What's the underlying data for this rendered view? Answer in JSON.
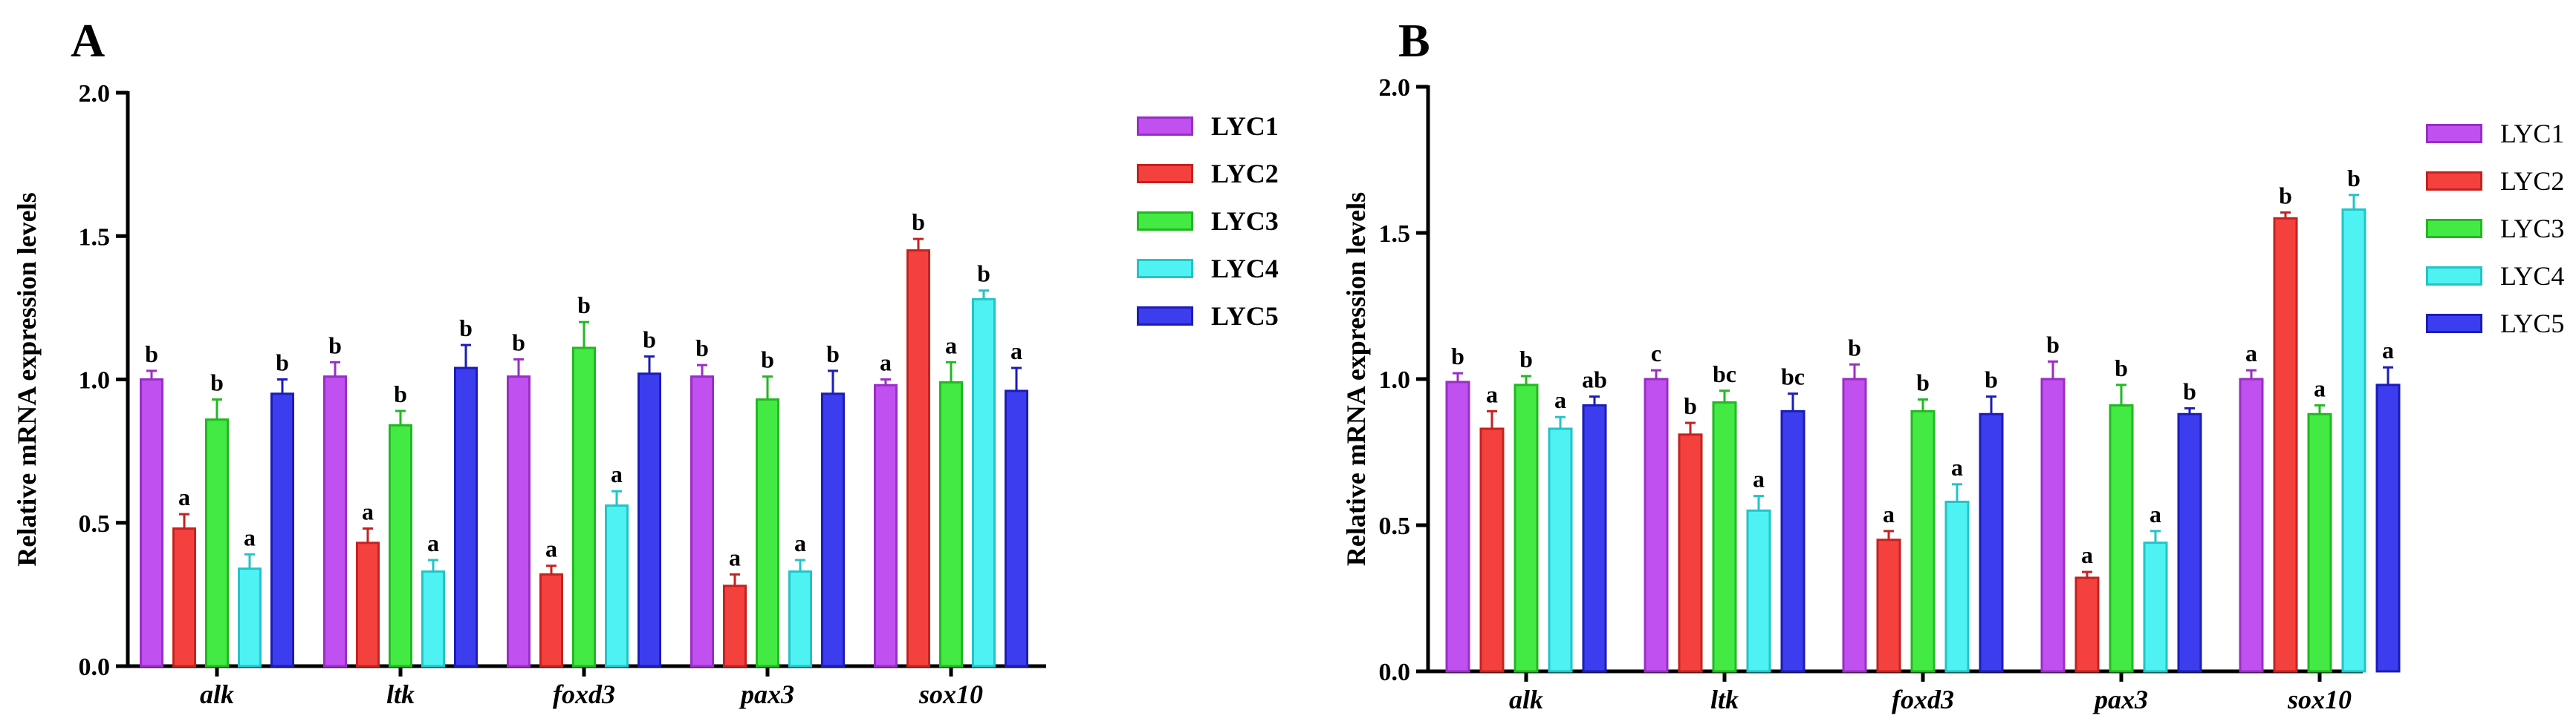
{
  "colors": {
    "LYC1": {
      "fill": "#c050f0",
      "stroke": "#9a2ec4"
    },
    "LYC2": {
      "fill": "#f5413e",
      "stroke": "#c42220"
    },
    "LYC3": {
      "fill": "#44ea44",
      "stroke": "#22b822"
    },
    "LYC4": {
      "fill": "#4ff2f2",
      "stroke": "#22c4c8"
    },
    "LYC5": {
      "fill": "#3d3df0",
      "stroke": "#1c1cb8"
    }
  },
  "panels": [
    {
      "letter": "A"
    },
    {
      "letter": "B"
    }
  ],
  "chart_data": [
    {
      "type": "bar",
      "panel": "A",
      "title": "",
      "xlabel": "",
      "ylabel": "Relative mRNA expression levels",
      "ylim": [
        0,
        2.0
      ],
      "yticks": [
        "0.0",
        "0.5",
        "1.0",
        "1.5",
        "2.0"
      ],
      "legend_position": "right",
      "categories": [
        "alk",
        "ltk",
        "foxd3",
        "pax3",
        "sox10"
      ],
      "series": [
        {
          "name": "LYC1",
          "values": [
            1.0,
            1.01,
            1.01,
            1.01,
            0.98
          ],
          "errors": [
            0.03,
            0.05,
            0.06,
            0.04,
            0.02
          ],
          "labels": [
            "b",
            "b",
            "b",
            "b",
            "a"
          ]
        },
        {
          "name": "LYC2",
          "values": [
            0.48,
            0.43,
            0.32,
            0.28,
            1.45
          ],
          "errors": [
            0.05,
            0.05,
            0.03,
            0.04,
            0.04
          ],
          "labels": [
            "a",
            "a",
            "a",
            "a",
            "b"
          ]
        },
        {
          "name": "LYC3",
          "values": [
            0.86,
            0.84,
            1.11,
            0.93,
            0.99
          ],
          "errors": [
            0.07,
            0.05,
            0.09,
            0.08,
            0.07
          ],
          "labels": [
            "b",
            "b",
            "b",
            "b",
            "a"
          ]
        },
        {
          "name": "LYC4",
          "values": [
            0.34,
            0.33,
            0.56,
            0.33,
            1.28
          ],
          "errors": [
            0.05,
            0.04,
            0.05,
            0.04,
            0.03
          ],
          "labels": [
            "a",
            "a",
            "a",
            "a",
            "b"
          ]
        },
        {
          "name": "LYC5",
          "values": [
            0.95,
            1.04,
            1.02,
            0.95,
            0.96
          ],
          "errors": [
            0.05,
            0.08,
            0.06,
            0.08,
            0.08
          ],
          "labels": [
            "b",
            "b",
            "b",
            "b",
            "a"
          ]
        }
      ]
    },
    {
      "type": "bar",
      "panel": "B",
      "title": "",
      "xlabel": "",
      "ylabel": "Relative mRNA expression levels",
      "ylim": [
        0,
        2.0
      ],
      "yticks": [
        "0.0",
        "0.5",
        "1.0",
        "1.5",
        "2.0"
      ],
      "legend_position": "right",
      "categories": [
        "alk",
        "ltk",
        "foxd3",
        "pax3",
        "sox10"
      ],
      "series": [
        {
          "name": "LYC1",
          "values": [
            0.99,
            1.0,
            1.0,
            1.0,
            1.0
          ],
          "errors": [
            0.03,
            0.03,
            0.05,
            0.06,
            0.03
          ],
          "labels": [
            "b",
            "c",
            "b",
            "b",
            "a"
          ]
        },
        {
          "name": "LYC2",
          "values": [
            0.83,
            0.81,
            0.45,
            0.32,
            1.55
          ],
          "errors": [
            0.06,
            0.04,
            0.03,
            0.02,
            0.02
          ],
          "labels": [
            "a",
            "b",
            "a",
            "a",
            "b"
          ]
        },
        {
          "name": "LYC3",
          "values": [
            0.98,
            0.92,
            0.89,
            0.91,
            0.88
          ],
          "errors": [
            0.03,
            0.04,
            0.04,
            0.07,
            0.03
          ],
          "labels": [
            "b",
            "bc",
            "b",
            "b",
            "a"
          ]
        },
        {
          "name": "LYC4",
          "values": [
            0.83,
            0.55,
            0.58,
            0.44,
            1.58
          ],
          "errors": [
            0.04,
            0.05,
            0.06,
            0.04,
            0.05
          ],
          "labels": [
            "a",
            "a",
            "a",
            "a",
            "b"
          ]
        },
        {
          "name": "LYC5",
          "values": [
            0.91,
            0.89,
            0.88,
            0.88,
            0.98
          ],
          "errors": [
            0.03,
            0.06,
            0.06,
            0.02,
            0.06
          ],
          "labels": [
            "ab",
            "bc",
            "b",
            "b",
            "a"
          ]
        }
      ]
    }
  ]
}
